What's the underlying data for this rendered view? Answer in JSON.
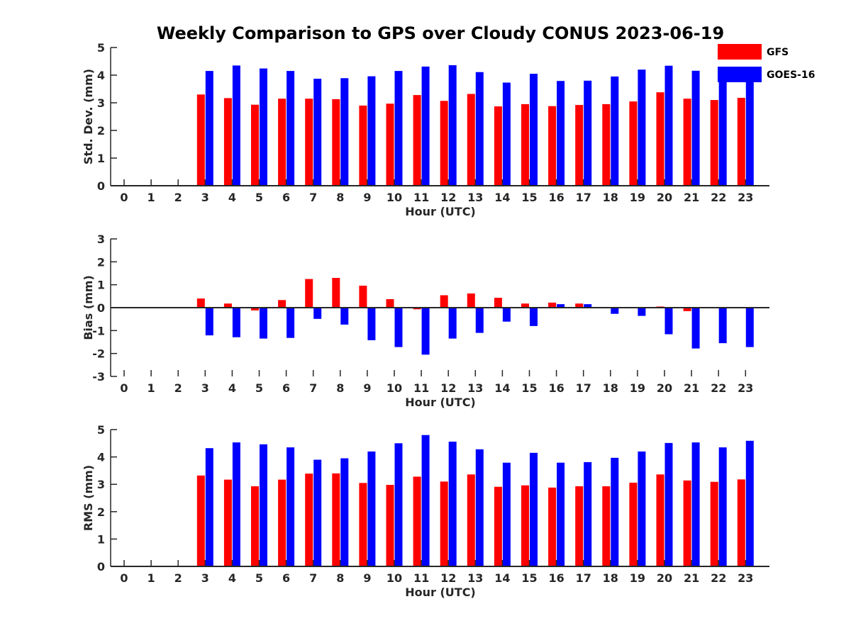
{
  "title": "Weekly Comparison to GPS over Cloudy CONUS 2023-06-19",
  "colors": {
    "GFS": "#ff0000",
    "GOES-16": "#0000ff",
    "axis": "#262626"
  },
  "legend": {
    "placement": "top-right",
    "items": [
      "GFS",
      "GOES-16"
    ]
  },
  "chart_data": [
    {
      "type": "bar",
      "ylabel": "Std. Dev. (mm)",
      "xlabel": "Hour (UTC)",
      "ylim": [
        0,
        5
      ],
      "yticks": [
        0,
        1,
        2,
        3,
        4,
        5
      ],
      "categories": [
        "0",
        "1",
        "2",
        "3",
        "4",
        "5",
        "6",
        "7",
        "8",
        "9",
        "10",
        "11",
        "12",
        "13",
        "14",
        "15",
        "16",
        "17",
        "18",
        "19",
        "20",
        "21",
        "22",
        "23"
      ],
      "series": [
        {
          "name": "GFS",
          "values": [
            null,
            null,
            null,
            3.3,
            3.17,
            2.93,
            3.15,
            3.15,
            3.13,
            2.9,
            2.97,
            3.28,
            3.07,
            3.32,
            2.87,
            2.95,
            2.88,
            2.92,
            2.95,
            3.05,
            3.38,
            3.15,
            3.1,
            3.18
          ]
        },
        {
          "name": "GOES-16",
          "values": [
            null,
            null,
            null,
            4.15,
            4.35,
            4.24,
            4.15,
            3.87,
            3.89,
            3.96,
            4.15,
            4.31,
            4.36,
            4.11,
            3.73,
            4.05,
            3.79,
            3.8,
            3.95,
            4.2,
            4.34,
            4.16,
            4.04,
            3.9
          ]
        }
      ],
      "grid": false
    },
    {
      "type": "bar",
      "ylabel": "Bias (mm)",
      "xlabel": "Hour (UTC)",
      "ylim": [
        -3,
        3
      ],
      "yticks": [
        -3,
        -2,
        -1,
        0,
        1,
        2,
        3
      ],
      "categories": [
        "0",
        "1",
        "2",
        "3",
        "4",
        "5",
        "6",
        "7",
        "8",
        "9",
        "10",
        "11",
        "12",
        "13",
        "14",
        "15",
        "16",
        "17",
        "18",
        "19",
        "20",
        "21",
        "22",
        "23"
      ],
      "series": [
        {
          "name": "GFS",
          "values": [
            null,
            null,
            null,
            0.4,
            0.18,
            -0.12,
            0.33,
            1.25,
            1.3,
            0.96,
            0.37,
            -0.07,
            0.54,
            0.62,
            0.43,
            0.18,
            0.22,
            0.18,
            0.0,
            0.02,
            0.05,
            -0.15,
            0.0,
            0.0
          ]
        },
        {
          "name": "GOES-16",
          "values": [
            null,
            null,
            null,
            -1.21,
            -1.29,
            -1.35,
            -1.32,
            -0.49,
            -0.74,
            -1.42,
            -1.72,
            -2.05,
            -1.35,
            -1.1,
            -0.61,
            -0.8,
            0.15,
            0.15,
            -0.27,
            -0.36,
            -1.16,
            -1.78,
            -1.55,
            -1.72
          ]
        }
      ],
      "grid": false
    },
    {
      "type": "bar",
      "ylabel": "RMS (mm)",
      "xlabel": "Hour (UTC)",
      "ylim": [
        0,
        5
      ],
      "yticks": [
        0,
        1,
        2,
        3,
        4,
        5
      ],
      "categories": [
        "0",
        "1",
        "2",
        "3",
        "4",
        "5",
        "6",
        "7",
        "8",
        "9",
        "10",
        "11",
        "12",
        "13",
        "14",
        "15",
        "16",
        "17",
        "18",
        "19",
        "20",
        "21",
        "22",
        "23"
      ],
      "series": [
        {
          "name": "GFS",
          "values": [
            null,
            null,
            null,
            3.32,
            3.17,
            2.93,
            3.17,
            3.39,
            3.4,
            3.05,
            2.98,
            3.28,
            3.1,
            3.36,
            2.91,
            2.96,
            2.88,
            2.93,
            2.93,
            3.06,
            3.36,
            3.14,
            3.09,
            3.18
          ]
        },
        {
          "name": "GOES-16",
          "values": [
            null,
            null,
            null,
            4.32,
            4.53,
            4.46,
            4.35,
            3.9,
            3.95,
            4.2,
            4.5,
            4.8,
            4.56,
            4.28,
            3.79,
            4.15,
            3.79,
            3.81,
            3.97,
            4.2,
            4.51,
            4.53,
            4.35,
            4.59
          ]
        }
      ],
      "grid": false
    }
  ]
}
